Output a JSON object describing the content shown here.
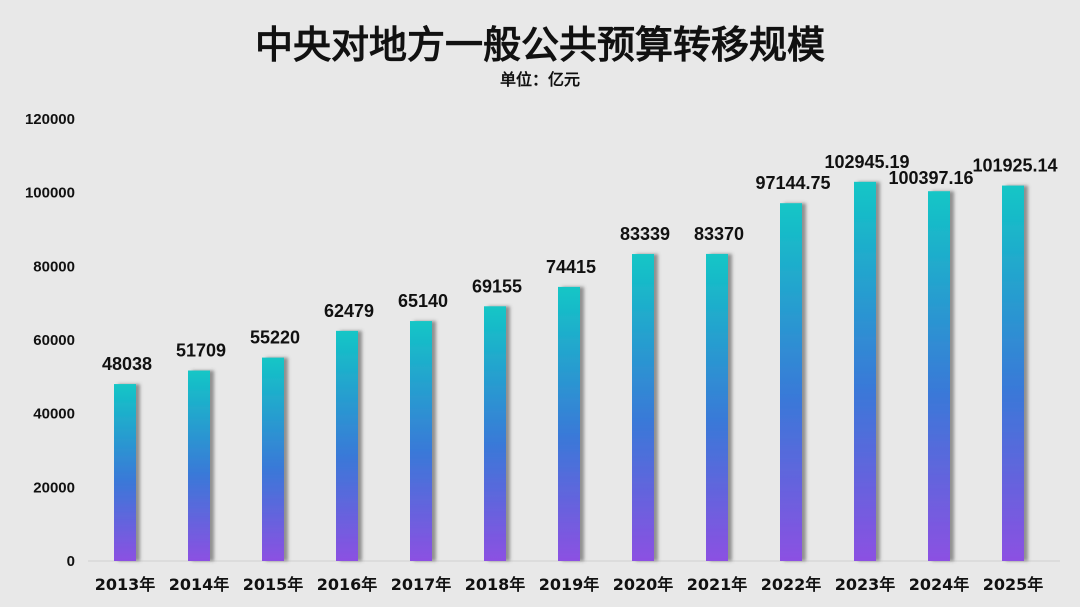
{
  "chart_data": {
    "type": "bar",
    "title": "中央对地方一般公共预算转移规模",
    "subtitle": "单位：亿元",
    "categories": [
      "2013年",
      "2014年",
      "2015年",
      "2016年",
      "2017年",
      "2018年",
      "2019年",
      "2020年",
      "2021年",
      "2022年",
      "2023年",
      "2024年",
      "2025年"
    ],
    "values": [
      48038,
      51709,
      55220,
      62479,
      65140,
      69155,
      74415,
      83339,
      83370,
      97144.75,
      102945.19,
      100397.16,
      101925.14
    ],
    "data_labels": [
      "48038",
      "51709",
      "55220",
      "62479",
      "65140",
      "69155",
      "74415",
      "83339",
      "83370",
      "97144.75",
      "102945.19",
      "100397.16",
      "101925.14"
    ],
    "yticks": [
      "0",
      "20000",
      "40000",
      "60000",
      "80000",
      "100000",
      "120000"
    ],
    "ylim": [
      0,
      120000
    ],
    "grid": false,
    "legend": "none",
    "colors": {
      "bar_top": "#12c6c6",
      "bar_mid": "#3a78d8",
      "bar_bottom": "#8c50e2",
      "background": "#e8e8e8"
    }
  }
}
